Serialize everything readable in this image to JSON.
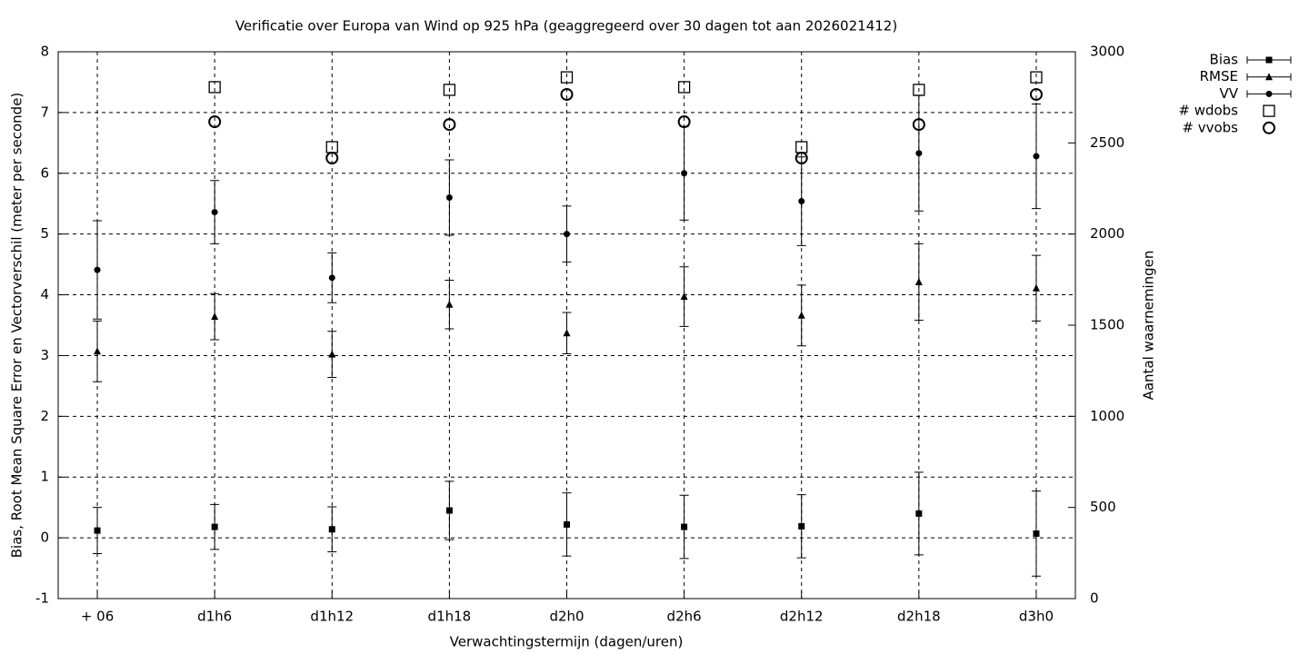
{
  "chart_data": {
    "type": "errorbar",
    "title": "Verificatie over Europa van Wind op 925 hPa (geaggregeerd over 30 dagen tot aan 2026021412)",
    "x_label": "Verwachtingstermijn (dagen/uren)",
    "y_label": "Bias, Root Mean Square Error en Vectorverschil (meter per seconde)",
    "y2_label": "Aantal waarnemingen",
    "categories": [
      "+ 06",
      "d1h6",
      "d1h12",
      "d1h18",
      "d2h0",
      "d2h6",
      "d2h12",
      "d2h18",
      "d3h0"
    ],
    "ylim": [
      -1,
      8
    ],
    "yticks": [
      -1,
      0,
      1,
      2,
      3,
      4,
      5,
      6,
      7,
      8
    ],
    "y2lim": [
      0,
      3000
    ],
    "y2ticks": [
      0,
      500,
      1000,
      1500,
      2000,
      2500,
      3000
    ],
    "grid": true,
    "legend": "outside-top-right",
    "series": [
      {
        "name": "Bias",
        "color": "#000000",
        "marker": "square",
        "values": [
          0.12,
          0.18,
          0.14,
          0.45,
          0.22,
          0.18,
          0.19,
          0.4,
          0.07
        ],
        "errors": [
          0.38,
          0.37,
          0.37,
          0.48,
          0.52,
          0.52,
          0.52,
          0.68,
          0.7
        ]
      },
      {
        "name": "RMSE",
        "color": "#000000",
        "marker": "triangle",
        "values": [
          3.07,
          3.64,
          3.02,
          3.84,
          3.37,
          3.97,
          3.66,
          4.21,
          4.11
        ],
        "errors": [
          0.5,
          0.38,
          0.38,
          0.4,
          0.34,
          0.49,
          0.5,
          0.63,
          0.54
        ]
      },
      {
        "name": "VV",
        "color": "#000000",
        "marker": "circle",
        "values": [
          4.41,
          5.36,
          4.28,
          5.6,
          5.0,
          6.0,
          5.54,
          6.33,
          6.28
        ],
        "errors": [
          0.81,
          0.52,
          0.41,
          0.62,
          0.46,
          0.77,
          0.73,
          0.95,
          0.86
        ]
      },
      {
        "name": "# wdobs",
        "color": "#000000",
        "marker": "open-square",
        "axis": "y2",
        "values": [
          null,
          2806,
          2477,
          2791,
          2860,
          2806,
          2477,
          2791,
          2860
        ]
      },
      {
        "name": "# vvobs",
        "color": "#000000",
        "marker": "open-circle",
        "axis": "y2",
        "values": [
          null,
          2616,
          2417,
          2601,
          2766,
          2616,
          2417,
          2601,
          2766
        ]
      }
    ]
  }
}
